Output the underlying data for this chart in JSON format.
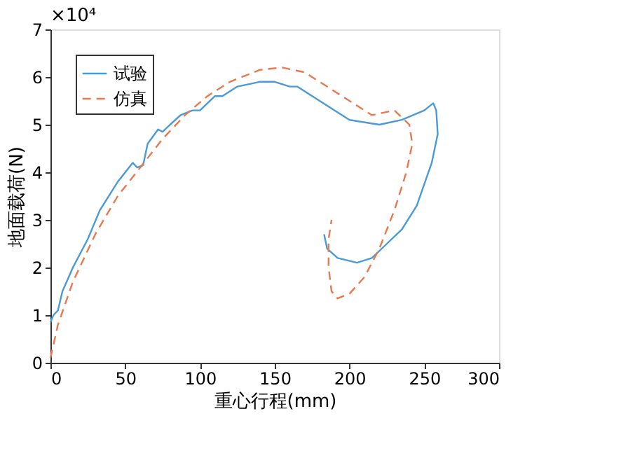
{
  "chart_data": {
    "type": "line",
    "xlabel": "重心行程(mm)",
    "ylabel": "地面载荷(N)",
    "annotations": [
      "×10⁴"
    ],
    "xlim": [
      0,
      300
    ],
    "xticks": [
      0,
      50,
      100,
      150,
      200,
      250,
      300
    ],
    "ylim": [
      0,
      7
    ],
    "yticks": [
      0,
      1,
      2,
      3,
      4,
      5,
      6,
      7
    ],
    "grid": false,
    "legend": "top left",
    "series": [
      {
        "name": "试验",
        "color": "#4a9ad6",
        "line_style": "solid",
        "x": [
          0,
          2,
          5,
          8,
          15,
          25,
          33,
          45,
          55,
          58,
          62,
          65,
          72,
          75,
          80,
          87,
          95,
          100,
          110,
          115,
          125,
          140,
          150,
          160,
          165,
          180,
          200,
          220,
          235,
          250,
          256,
          258,
          259,
          255,
          245,
          235,
          225,
          215,
          205,
          192,
          185,
          183
        ],
        "values": [
          0.85,
          1.0,
          1.1,
          1.5,
          2.0,
          2.6,
          3.2,
          3.8,
          4.2,
          4.1,
          4.15,
          4.6,
          4.9,
          4.85,
          5.0,
          5.2,
          5.3,
          5.3,
          5.6,
          5.6,
          5.8,
          5.9,
          5.9,
          5.8,
          5.8,
          5.5,
          5.1,
          5.0,
          5.1,
          5.3,
          5.45,
          5.3,
          4.8,
          4.2,
          3.3,
          2.8,
          2.5,
          2.2,
          2.1,
          2.2,
          2.4,
          2.7
        ]
      },
      {
        "name": "仿真",
        "color": "#e8794f",
        "line_style": "dashed",
        "x": [
          0,
          5,
          15,
          30,
          45,
          60,
          75,
          90,
          105,
          120,
          140,
          155,
          170,
          185,
          200,
          215,
          230,
          240,
          242,
          238,
          230,
          220,
          210,
          200,
          192,
          188,
          186,
          186,
          188
        ],
        "values": [
          0.1,
          0.8,
          1.7,
          2.7,
          3.5,
          4.1,
          4.7,
          5.2,
          5.6,
          5.9,
          6.15,
          6.2,
          6.1,
          5.8,
          5.5,
          5.2,
          5.3,
          5.0,
          4.6,
          4.0,
          3.2,
          2.4,
          1.8,
          1.45,
          1.35,
          1.5,
          2.0,
          2.6,
          3.0
        ]
      }
    ]
  }
}
